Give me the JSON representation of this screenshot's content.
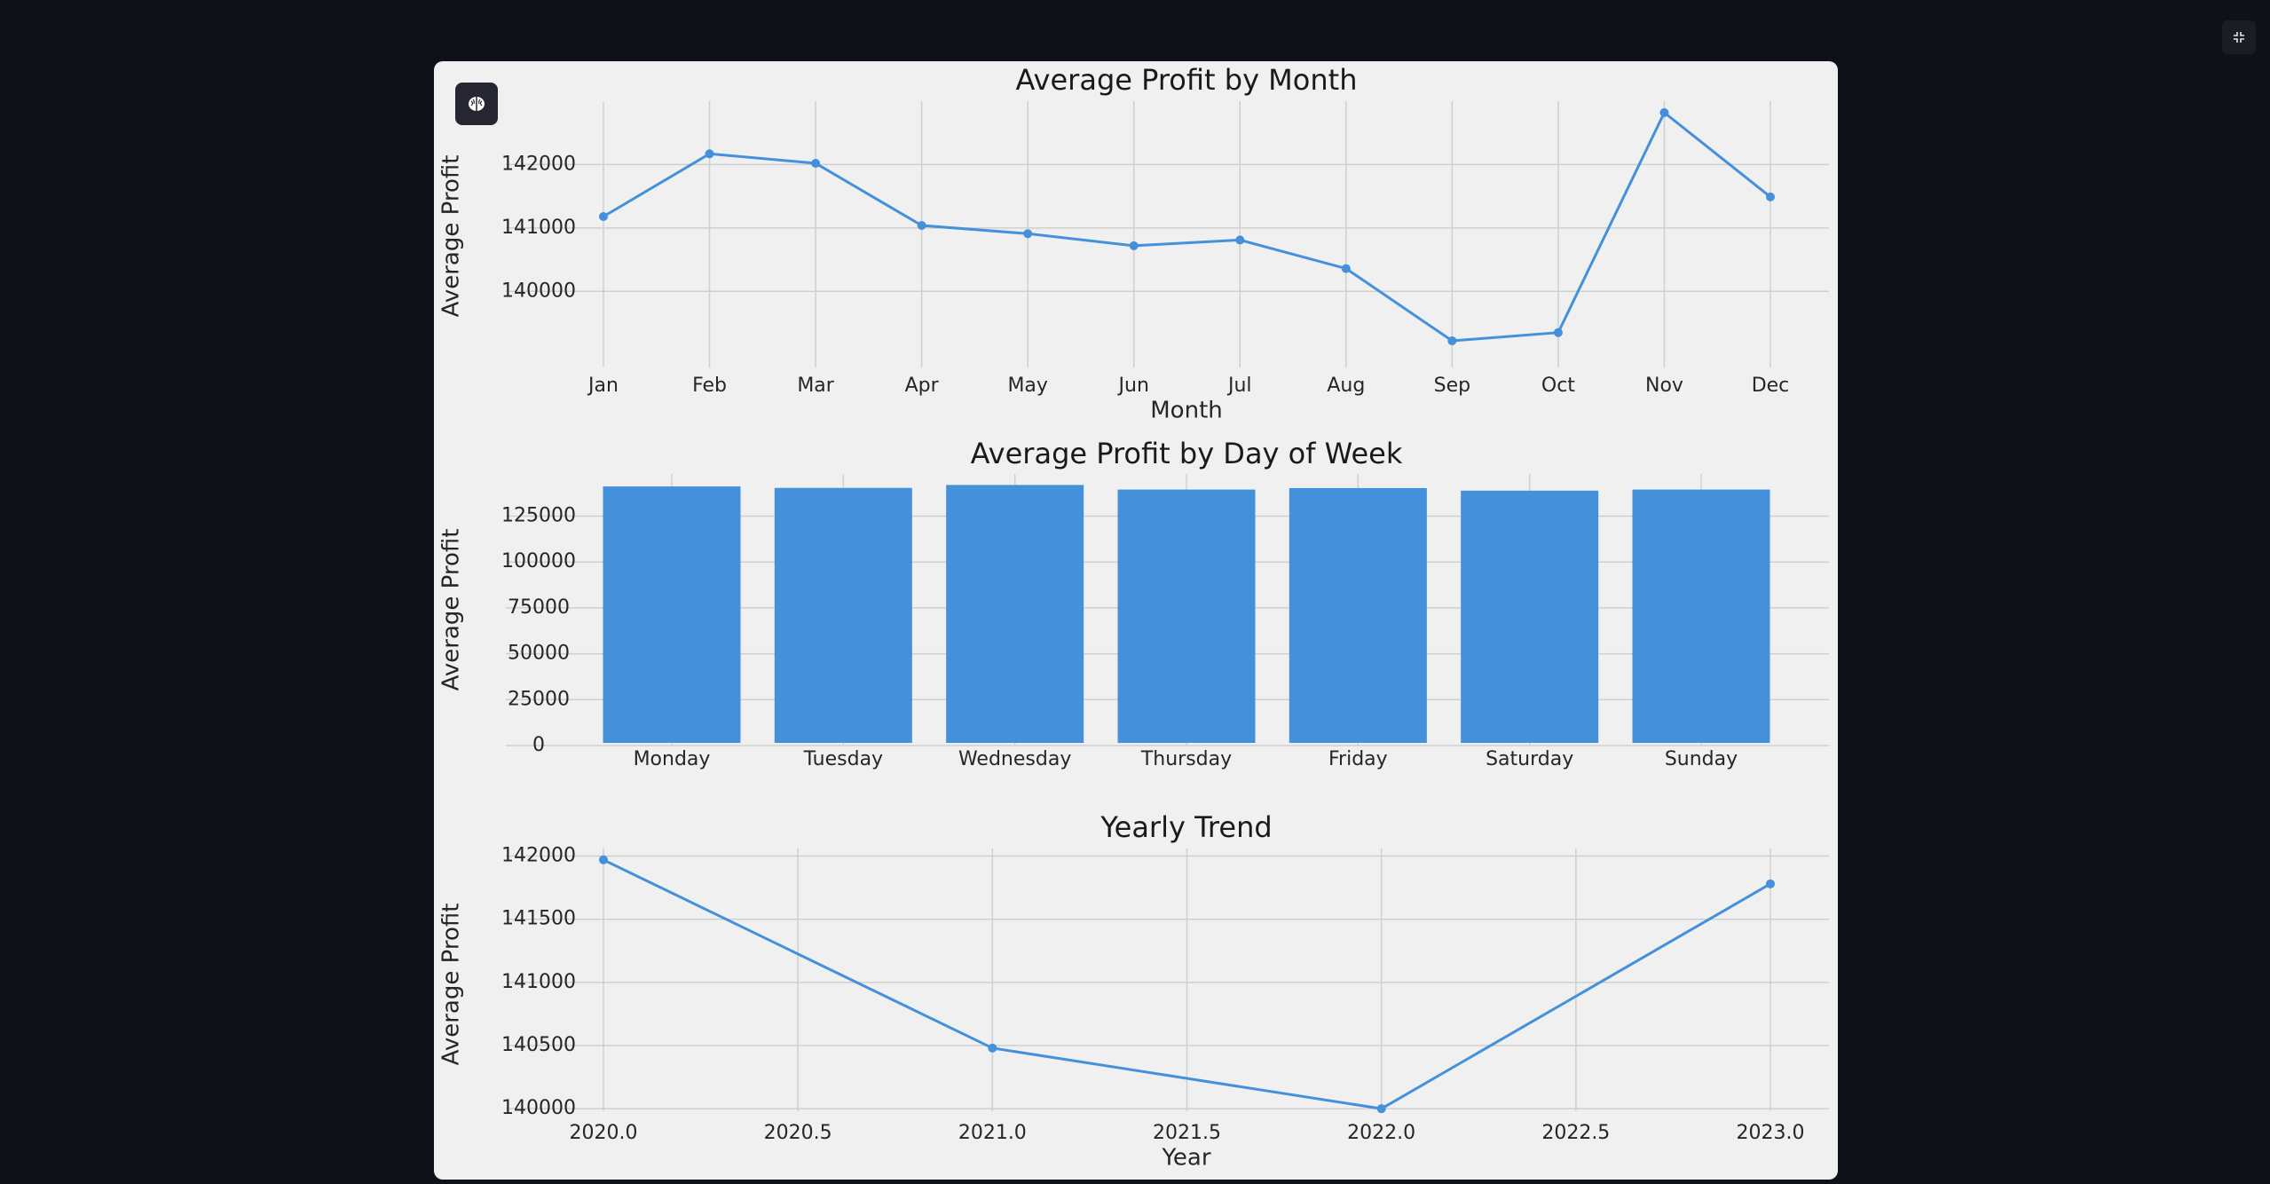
{
  "toolbar": {
    "brain_icon": "brain-icon",
    "fullscreen_icon": "exit-fullscreen-icon"
  },
  "colors": {
    "page_bg": "#0e1117",
    "panel_bg": "#f0f0f0",
    "series": "#4490db",
    "grid": "#cfcfcf"
  },
  "chart_data": [
    {
      "type": "line",
      "title": "Average Profit by Month",
      "xlabel": "Month",
      "ylabel": "Average Profit",
      "categories": [
        "Jan",
        "Feb",
        "Mar",
        "Apr",
        "May",
        "Jun",
        "Jul",
        "Aug",
        "Sep",
        "Oct",
        "Nov",
        "Dec"
      ],
      "values": [
        141180,
        142170,
        142020,
        141040,
        140910,
        140720,
        140810,
        140360,
        139220,
        139350,
        142820,
        141490
      ],
      "yticks": [
        140000,
        141000,
        142000
      ],
      "ylim": [
        138800,
        143000
      ],
      "grid": true
    },
    {
      "type": "bar",
      "title": "Average Profit by Day of Week",
      "xlabel": "",
      "ylabel": "Average Profit",
      "categories": [
        "Monday",
        "Tuesday",
        "Wednesday",
        "Thursday",
        "Friday",
        "Saturday",
        "Sunday"
      ],
      "values": [
        141200,
        140400,
        142000,
        139500,
        140300,
        138900,
        139500
      ],
      "yticks": [
        0,
        25000,
        50000,
        75000,
        100000,
        125000
      ],
      "ylim": [
        0,
        148000
      ],
      "grid": true
    },
    {
      "type": "line",
      "title": "Yearly Trend",
      "xlabel": "Year",
      "ylabel": "Average Profit",
      "x": [
        2020.0,
        2021.0,
        2022.0,
        2023.0
      ],
      "values": [
        141970,
        140480,
        140000,
        141780
      ],
      "xticks": [
        "2020.0",
        "2020.5",
        "2021.0",
        "2021.5",
        "2022.0",
        "2022.5",
        "2023.0"
      ],
      "yticks": [
        140000,
        140500,
        141000,
        141500,
        142000
      ],
      "ylim": [
        139980,
        142060
      ],
      "xlim": [
        2019.86,
        2023.14
      ],
      "grid": true
    }
  ]
}
